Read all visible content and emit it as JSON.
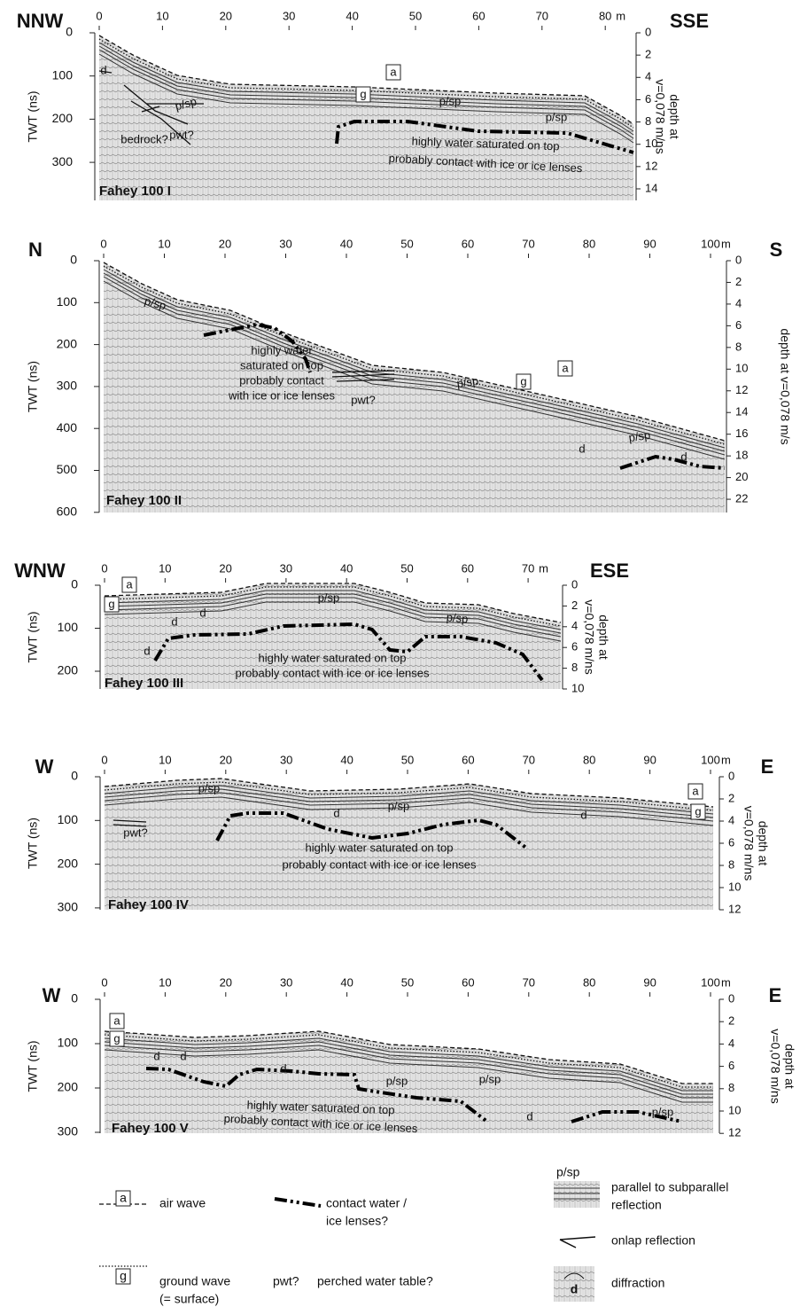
{
  "panels": [
    {
      "direction_left": "NNW",
      "direction_right": "SSE",
      "name": "Fahey 100 I",
      "y_label": "TWT (ns)",
      "depth_label": [
        "depth at",
        "v=0,078 m/ns"
      ],
      "x_unit": "m",
      "x_ticks": [
        0,
        10,
        20,
        30,
        40,
        50,
        60,
        70,
        80
      ],
      "twt_ticks": [
        0,
        100,
        200,
        300
      ],
      "depth_ticks": [
        0,
        2,
        4,
        6,
        8,
        10,
        12,
        14
      ],
      "annotations": [
        "d",
        "p/sp",
        "pwt?",
        "bedrock?",
        "a",
        "g",
        "p/sp",
        "p/sp",
        "highly water saturated on top",
        "probably contact with ice or ice lenses"
      ]
    },
    {
      "direction_left": "N",
      "direction_right": "S",
      "name": "Fahey 100 II",
      "y_label": "TWT (ns)",
      "depth_label": [
        "depth at v=0,078 m/s"
      ],
      "x_unit": "m",
      "x_ticks": [
        0,
        10,
        20,
        30,
        40,
        50,
        60,
        70,
        80,
        90,
        100
      ],
      "twt_ticks": [
        0,
        100,
        200,
        300,
        400,
        500,
        600
      ],
      "depth_ticks": [
        0,
        2,
        4,
        6,
        8,
        10,
        12,
        14,
        16,
        18,
        20,
        22
      ],
      "annotations": [
        "p/sp",
        "highly water",
        "saturated on top",
        "probably contact",
        "with ice or ice lenses",
        "pwt?",
        "p/sp",
        "g",
        "a",
        "d",
        "p/sp",
        "d"
      ]
    },
    {
      "direction_left": "WNW",
      "direction_right": "ESE",
      "name": "Fahey 100 III",
      "y_label": "TWT (ns)",
      "depth_label": [
        "depth at",
        "v=0,078 m/ns"
      ],
      "x_unit": "m",
      "x_ticks": [
        0,
        10,
        20,
        30,
        40,
        50,
        60,
        70
      ],
      "twt_ticks": [
        0,
        100,
        200
      ],
      "depth_ticks": [
        0,
        2,
        4,
        6,
        8,
        10
      ],
      "annotations": [
        "a",
        "g",
        "d",
        "d",
        "d",
        "p/sp",
        "p/sp",
        "highly water saturated on top",
        "probably contact with ice or ice lenses"
      ]
    },
    {
      "direction_left": "W",
      "direction_right": "E",
      "name": "Fahey 100 IV",
      "y_label": "TWT (ns)",
      "depth_label": [
        "depth at",
        "v=0,078 m/ns"
      ],
      "x_unit": "m",
      "x_ticks": [
        0,
        10,
        20,
        30,
        40,
        50,
        60,
        70,
        80,
        90,
        100
      ],
      "twt_ticks": [
        0,
        100,
        200,
        300
      ],
      "depth_ticks": [
        0,
        2,
        4,
        6,
        8,
        10,
        12
      ],
      "annotations": [
        "p/sp",
        "pwt?",
        "d",
        "p/sp",
        "d",
        "a",
        "g",
        "highly water saturated on top",
        "probably contact with ice or ice lenses"
      ]
    },
    {
      "direction_left": "W",
      "direction_right": "E",
      "name": "Fahey 100 V",
      "y_label": "TWT (ns)",
      "depth_label": [
        "depth at",
        "v=0,078 m/ns"
      ],
      "x_unit": "m",
      "x_ticks": [
        0,
        10,
        20,
        30,
        40,
        50,
        60,
        70,
        80,
        90,
        100
      ],
      "twt_ticks": [
        0,
        100,
        200,
        300
      ],
      "depth_ticks": [
        0,
        2,
        4,
        6,
        8,
        10,
        12
      ],
      "annotations": [
        "a",
        "g",
        "d",
        "d",
        "d",
        "p/sp",
        "p/sp",
        "d",
        "p/sp",
        "highly water saturated on top",
        "probably contact with ice or ice lenses"
      ]
    }
  ],
  "legend": {
    "air_wave": {
      "symbol": "a",
      "label": "air wave"
    },
    "contact": [
      "contact water /",
      "ice lenses?"
    ],
    "parallel": {
      "symbol": "p/sp",
      "label": [
        "parallel to subparallel",
        "reflection"
      ]
    },
    "onlap": "onlap reflection",
    "ground_wave": {
      "symbol": "g",
      "label": [
        "ground wave",
        "(= surface)"
      ]
    },
    "pwt": {
      "symbol": "pwt?",
      "label": "perched water table?"
    },
    "diffraction": {
      "symbol": "d",
      "label": "diffraction"
    }
  }
}
